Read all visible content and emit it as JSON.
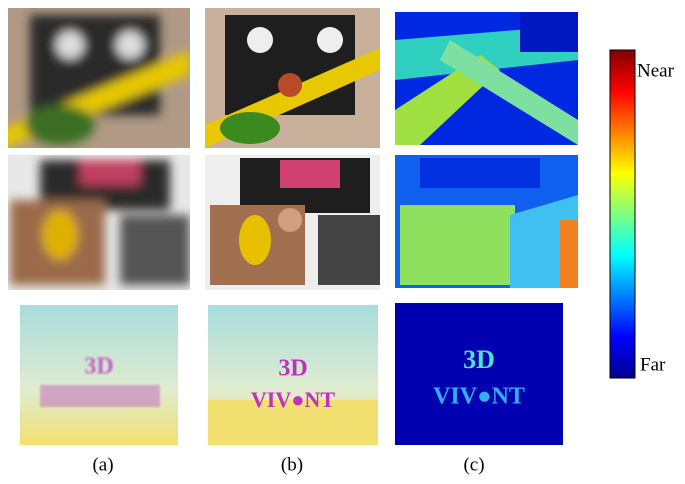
{
  "figure": {
    "column_labels": [
      "(a)",
      "(b)",
      "(c)"
    ],
    "colorbar": {
      "top_label": "Near",
      "bottom_label": "Far"
    }
  }
}
